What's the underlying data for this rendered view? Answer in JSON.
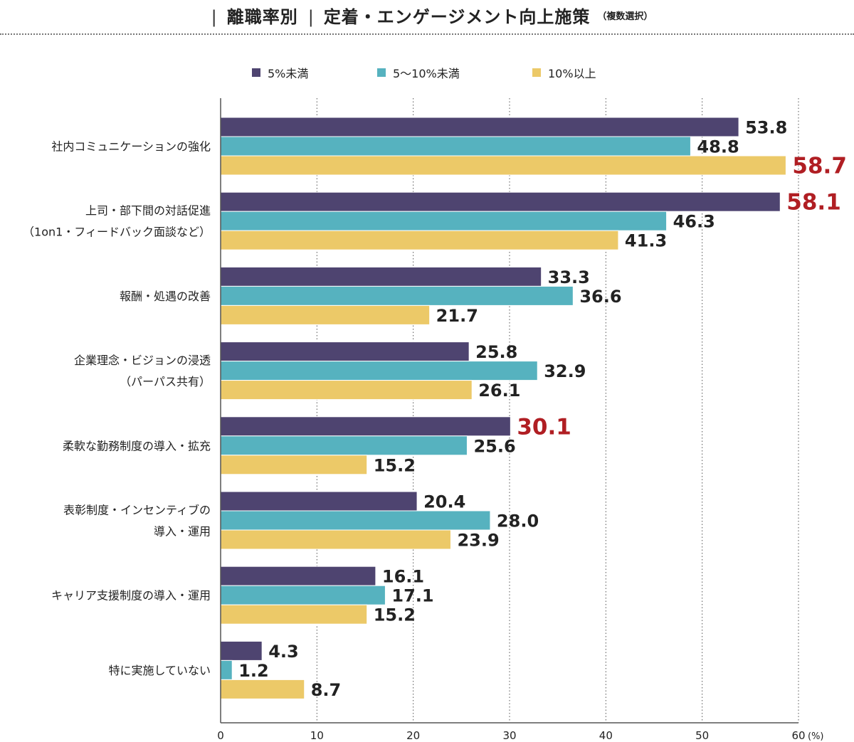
{
  "header": {
    "left_bar": "|",
    "segment": "離職率別",
    "mid_bar": "|",
    "title": "定着・エンゲージメント向上施策",
    "note": "（複数選択）"
  },
  "colors": {
    "series_1": "#4e4470",
    "series_2": "#56b2bf",
    "series_3": "#ecc968",
    "highlight_label": "#b01e23",
    "label": "#222222"
  },
  "chart_data": {
    "type": "bar",
    "orientation": "horizontal",
    "title": "離職率別 定着・エンゲージメント向上施策（複数選択）",
    "xlim": [
      0,
      60
    ],
    "xticks": [
      0,
      10,
      20,
      30,
      40,
      50,
      60
    ],
    "tick_labels": [
      "0",
      "10",
      "20",
      "30",
      "40",
      "50",
      "60"
    ],
    "unit": "(%)",
    "grid": "vertical dotted",
    "categories": [
      [
        "社内コミュニケーションの強化"
      ],
      [
        "上司・部下間の対話促進",
        "（1on1・フィードバック面談など）"
      ],
      [
        "報酬・処遇の改善"
      ],
      [
        "企業理念・ビジョンの浸透",
        "（パーパス共有）"
      ],
      [
        "柔軟な勤務制度の導入・拡充"
      ],
      [
        "表彰制度・インセンティブの",
        "導入・運用"
      ],
      [
        "キャリア支援制度の導入・運用"
      ],
      [
        "特に実施していない"
      ]
    ],
    "series": [
      {
        "name": "5%未満",
        "values": [
          53.8,
          58.1,
          33.3,
          25.8,
          30.1,
          20.4,
          16.1,
          4.3
        ],
        "value_labels": [
          "53.8",
          "58.1",
          "33.3",
          "25.8",
          "30.1",
          "20.4",
          "16.1",
          "4.3"
        ]
      },
      {
        "name": "5〜10%未満",
        "values": [
          48.8,
          46.3,
          36.6,
          32.9,
          25.6,
          28.0,
          17.1,
          1.2
        ],
        "value_labels": [
          "48.8",
          "46.3",
          "36.6",
          "32.9",
          "25.6",
          "28.0",
          "17.1",
          "1.2"
        ]
      },
      {
        "name": "10%以上",
        "values": [
          58.7,
          41.3,
          21.7,
          26.1,
          15.2,
          23.9,
          15.2,
          8.7
        ],
        "value_labels": [
          "58.7",
          "41.3",
          "21.7",
          "26.1",
          "15.2",
          "23.9",
          "15.2",
          "8.7"
        ]
      }
    ],
    "highlighted": [
      {
        "series": 2,
        "category": 0
      },
      {
        "series": 0,
        "category": 1
      },
      {
        "series": 0,
        "category": 4
      }
    ]
  }
}
